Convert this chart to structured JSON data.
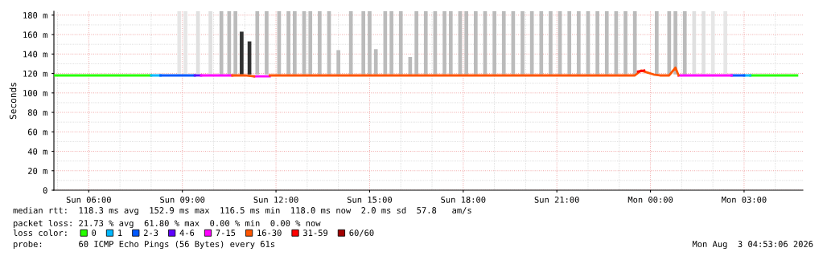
{
  "chart_data": {
    "type": "line",
    "ylabel": "Seconds",
    "xlim": [
      "2026-08-02T04:53",
      "2026-08-03T04:53"
    ],
    "xticks": [
      {
        "value": "2026-08-02T06:00",
        "label": "Sun 06:00"
      },
      {
        "value": "2026-08-02T09:00",
        "label": "Sun 09:00"
      },
      {
        "value": "2026-08-02T12:00",
        "label": "Sun 12:00"
      },
      {
        "value": "2026-08-02T15:00",
        "label": "Sun 15:00"
      },
      {
        "value": "2026-08-02T18:00",
        "label": "Sun 18:00"
      },
      {
        "value": "2026-08-02T21:00",
        "label": "Sun 21:00"
      },
      {
        "value": "2026-08-03T00:00",
        "label": "Mon 00:00"
      },
      {
        "value": "2026-08-03T03:00",
        "label": "Mon 03:00"
      }
    ],
    "ylim": [
      0,
      184
    ],
    "yticks": [
      0,
      {
        "value": 20,
        "label": "20 m"
      },
      {
        "value": 40,
        "label": "40 m"
      },
      {
        "value": 60,
        "label": "60 m"
      },
      {
        "value": 80,
        "label": "80 m"
      },
      {
        "value": 100,
        "label": "100 m"
      },
      {
        "value": 120,
        "label": "120 m"
      },
      {
        "value": 140,
        "label": "140 m"
      },
      {
        "value": 160,
        "label": "160 m"
      },
      {
        "value": 180,
        "label": "180 m"
      }
    ],
    "grid": true,
    "legend": "bottom",
    "legend_title": "loss color:",
    "series": [
      {
        "type": "bar",
        "x": [
          "2026-08-02T08:54",
          "2026-08-02T09:06",
          "2026-08-02T09:30",
          "2026-08-02T09:54",
          "2026-08-02T10:15",
          "2026-08-02T10:30",
          "2026-08-02T10:42",
          "2026-08-02T10:54",
          "2026-08-02T11:09",
          "2026-08-02T11:24",
          "2026-08-02T11:42",
          "2026-08-02T12:06",
          "2026-08-02T12:24",
          "2026-08-02T12:36",
          "2026-08-02T12:54",
          "2026-08-02T13:06",
          "2026-08-02T13:24",
          "2026-08-02T13:42",
          "2026-08-02T14:00",
          "2026-08-02T14:24",
          "2026-08-02T14:48",
          "2026-08-02T15:00",
          "2026-08-02T15:12",
          "2026-08-02T15:30",
          "2026-08-02T15:42",
          "2026-08-02T16:00",
          "2026-08-02T16:18",
          "2026-08-02T16:30",
          "2026-08-02T16:48",
          "2026-08-02T17:06",
          "2026-08-02T17:24",
          "2026-08-02T17:36",
          "2026-08-02T17:54",
          "2026-08-02T18:06",
          "2026-08-02T18:24",
          "2026-08-02T18:42",
          "2026-08-02T19:00",
          "2026-08-02T19:18",
          "2026-08-02T19:36",
          "2026-08-02T19:54",
          "2026-08-02T20:12",
          "2026-08-02T20:30",
          "2026-08-02T20:48",
          "2026-08-02T21:06",
          "2026-08-02T21:24",
          "2026-08-02T21:42",
          "2026-08-02T22:00",
          "2026-08-02T22:18",
          "2026-08-02T22:36",
          "2026-08-02T22:54",
          "2026-08-02T23:12",
          "2026-08-02T23:30",
          "2026-08-03T00:12",
          "2026-08-03T00:36",
          "2026-08-03T00:48",
          "2026-08-03T01:06",
          "2026-08-03T01:24",
          "2026-08-03T01:42",
          "2026-08-03T02:00",
          "2026-08-03T02:24"
        ],
        "base": [
          119,
          119,
          119,
          119,
          119,
          119,
          119,
          119,
          119,
          119,
          119,
          119,
          119,
          119,
          119,
          119,
          119,
          119,
          119,
          119,
          119,
          119,
          119,
          119,
          119,
          119,
          119,
          119,
          119,
          119,
          119,
          119,
          119,
          119,
          119,
          119,
          119,
          119,
          119,
          119,
          119,
          119,
          119,
          119,
          119,
          119,
          119,
          119,
          119,
          119,
          119,
          119,
          119,
          119,
          119,
          119,
          119,
          119,
          119,
          119
        ],
        "values": [
          65,
          65,
          65,
          65,
          65,
          65,
          65,
          44,
          34,
          65,
          65,
          65,
          65,
          65,
          65,
          65,
          65,
          65,
          25,
          65,
          65,
          65,
          26,
          65,
          65,
          65,
          18,
          65,
          65,
          65,
          65,
          65,
          65,
          65,
          65,
          65,
          65,
          65,
          65,
          65,
          65,
          65,
          65,
          65,
          65,
          65,
          65,
          65,
          65,
          65,
          65,
          65,
          65,
          65,
          65,
          65,
          65,
          65,
          65,
          65
        ],
        "colors": [
          "#e6e6e6",
          "#e6e6e6",
          "#e0e0e0",
          "#e0e0e0",
          "#bbbbbb",
          "#bbbbbb",
          "#bbbbbb",
          "#303030",
          "#303030",
          "#bbbbbb",
          "#bbbbbb",
          "#bbbbbb",
          "#bbbbbb",
          "#bbbbbb",
          "#bbbbbb",
          "#bbbbbb",
          "#bbbbbb",
          "#bbbbbb",
          "#bbbbbb",
          "#bbbbbb",
          "#bbbbbb",
          "#bbbbbb",
          "#bbbbbb",
          "#bbbbbb",
          "#bbbbbb",
          "#bbbbbb",
          "#bbbbbb",
          "#bbbbbb",
          "#bbbbbb",
          "#bbbbbb",
          "#bbbbbb",
          "#bbbbbb",
          "#bbbbbb",
          "#bbbbbb",
          "#bbbbbb",
          "#bbbbbb",
          "#bbbbbb",
          "#bbbbbb",
          "#bbbbbb",
          "#bbbbbb",
          "#bbbbbb",
          "#bbbbbb",
          "#bbbbbb",
          "#bbbbbb",
          "#bbbbbb",
          "#bbbbbb",
          "#bbbbbb",
          "#bbbbbb",
          "#bbbbbb",
          "#bbbbbb",
          "#bbbbbb",
          "#bbbbbb",
          "#bbbbbb",
          "#bbbbbb",
          "#bbbbbb",
          "#bbbbbb",
          "#e0e0e0",
          "#e0e0e0",
          "#e6e6e6",
          "#e6e6e6"
        ]
      },
      {
        "name": "0",
        "color": "#26ff00",
        "x": [
          "2026-08-02T04:54",
          "2026-08-02T06:30",
          "2026-08-02T08:00",
          "2026-08-02T17:00",
          "2026-08-03T03:12",
          "2026-08-03T04:42"
        ],
        "values": [
          118,
          118,
          118,
          null,
          118,
          118
        ]
      },
      {
        "name": "1",
        "color": "#00b7ff",
        "x": [
          "2026-08-02T08:00",
          "2026-08-02T08:18",
          "2026-08-02T17:00",
          "2026-08-03T03:00",
          "2026-08-03T03:12"
        ],
        "values": [
          118,
          118,
          null,
          118,
          118
        ]
      },
      {
        "name": "2-3",
        "color": "#0059ff",
        "x": [
          "2026-08-02T08:18",
          "2026-08-02T09:24",
          "2026-08-02T17:00",
          "2026-08-03T02:36",
          "2026-08-03T03:00"
        ],
        "values": [
          118,
          118,
          null,
          118,
          118
        ]
      },
      {
        "name": "4-6",
        "color": "#5e00ff",
        "x": [
          "2026-08-02T09:24",
          "2026-08-02T09:36"
        ],
        "values": [
          118,
          118
        ]
      },
      {
        "name": "7-15",
        "color": "#ff00ff",
        "x": [
          "2026-08-02T09:36",
          "2026-08-02T10:36",
          "2026-08-02T11:00",
          "2026-08-02T11:18",
          "2026-08-02T11:48",
          "2026-08-02T17:00",
          "2026-08-03T00:54",
          "2026-08-03T01:48",
          "2026-08-03T02:36"
        ],
        "values": [
          118,
          118,
          null,
          117,
          117,
          null,
          118,
          118,
          118
        ]
      },
      {
        "name": "16-30",
        "color": "#ff5500",
        "x": [
          "2026-08-02T10:36",
          "2026-08-02T11:00",
          "2026-08-02T11:18",
          "2026-08-02T11:30",
          "2026-08-02T11:48",
          "2026-08-02T14:00",
          "2026-08-02T17:00",
          "2026-08-02T20:00",
          "2026-08-02T23:30",
          "2026-08-02T23:42",
          "2026-08-02T23:54",
          "2026-08-03T00:06",
          "2026-08-03T00:18",
          "2026-08-03T00:36",
          "2026-08-03T00:48",
          "2026-08-03T00:54"
        ],
        "values": [
          118,
          118,
          117,
          null,
          118,
          118,
          118,
          118,
          118,
          123,
          121,
          119,
          118,
          118,
          126,
          118
        ]
      },
      {
        "name": "31-59",
        "color": "#ff0000",
        "x": [
          "2026-08-02T23:36",
          "2026-08-02T23:48"
        ],
        "values": [
          122,
          123
        ]
      },
      {
        "name": "60/60",
        "color": "#a10000"
      }
    ],
    "annotations": [
      "median rtt:  118.3 ms avg  152.9 ms max  116.5 ms min  118.0 ms now  2.0 ms sd  57.8   am/s",
      "packet loss: 21.73 % avg  61.80 % max  0.00 % min  0.00 % now",
      "probe:       60 ICMP Echo Pings (56 Bytes) every 61s",
      "Mon Aug  3 04:53:06 2026"
    ]
  }
}
